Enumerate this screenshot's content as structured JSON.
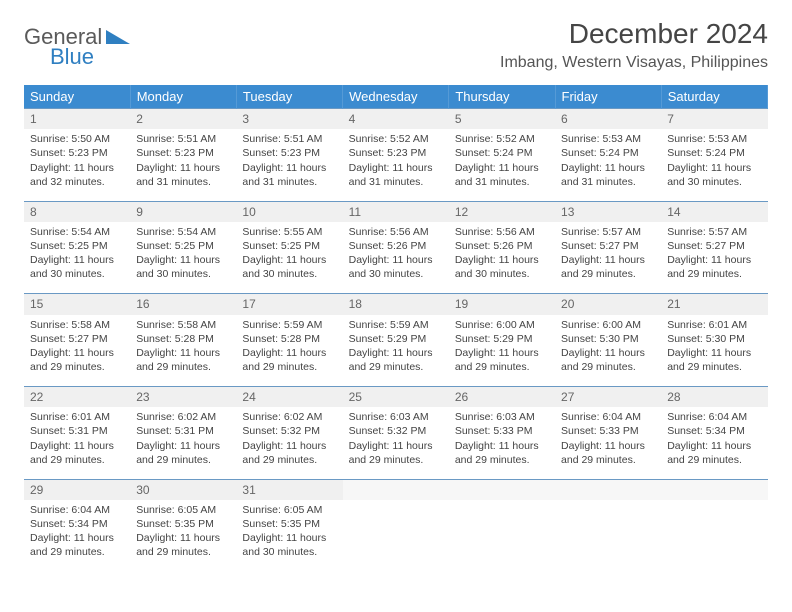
{
  "logo": {
    "line1": "General",
    "line2": "Blue"
  },
  "title": "December 2024",
  "location": "Imbang, Western Visayas, Philippines",
  "dayNames": [
    "Sunday",
    "Monday",
    "Tuesday",
    "Wednesday",
    "Thursday",
    "Friday",
    "Saturday"
  ],
  "colors": {
    "headerBg": "#3b8bd0",
    "headerText": "#ffffff",
    "dayNumBg": "#f0f0f0",
    "borderLine": "#6a99c4",
    "bodyText": "#444444"
  },
  "weeks": [
    [
      {
        "n": "1",
        "sr": "5:50 AM",
        "ss": "5:23 PM",
        "dl": "11 hours and 32 minutes."
      },
      {
        "n": "2",
        "sr": "5:51 AM",
        "ss": "5:23 PM",
        "dl": "11 hours and 31 minutes."
      },
      {
        "n": "3",
        "sr": "5:51 AM",
        "ss": "5:23 PM",
        "dl": "11 hours and 31 minutes."
      },
      {
        "n": "4",
        "sr": "5:52 AM",
        "ss": "5:23 PM",
        "dl": "11 hours and 31 minutes."
      },
      {
        "n": "5",
        "sr": "5:52 AM",
        "ss": "5:24 PM",
        "dl": "11 hours and 31 minutes."
      },
      {
        "n": "6",
        "sr": "5:53 AM",
        "ss": "5:24 PM",
        "dl": "11 hours and 31 minutes."
      },
      {
        "n": "7",
        "sr": "5:53 AM",
        "ss": "5:24 PM",
        "dl": "11 hours and 30 minutes."
      }
    ],
    [
      {
        "n": "8",
        "sr": "5:54 AM",
        "ss": "5:25 PM",
        "dl": "11 hours and 30 minutes."
      },
      {
        "n": "9",
        "sr": "5:54 AM",
        "ss": "5:25 PM",
        "dl": "11 hours and 30 minutes."
      },
      {
        "n": "10",
        "sr": "5:55 AM",
        "ss": "5:25 PM",
        "dl": "11 hours and 30 minutes."
      },
      {
        "n": "11",
        "sr": "5:56 AM",
        "ss": "5:26 PM",
        "dl": "11 hours and 30 minutes."
      },
      {
        "n": "12",
        "sr": "5:56 AM",
        "ss": "5:26 PM",
        "dl": "11 hours and 30 minutes."
      },
      {
        "n": "13",
        "sr": "5:57 AM",
        "ss": "5:27 PM",
        "dl": "11 hours and 29 minutes."
      },
      {
        "n": "14",
        "sr": "5:57 AM",
        "ss": "5:27 PM",
        "dl": "11 hours and 29 minutes."
      }
    ],
    [
      {
        "n": "15",
        "sr": "5:58 AM",
        "ss": "5:27 PM",
        "dl": "11 hours and 29 minutes."
      },
      {
        "n": "16",
        "sr": "5:58 AM",
        "ss": "5:28 PM",
        "dl": "11 hours and 29 minutes."
      },
      {
        "n": "17",
        "sr": "5:59 AM",
        "ss": "5:28 PM",
        "dl": "11 hours and 29 minutes."
      },
      {
        "n": "18",
        "sr": "5:59 AM",
        "ss": "5:29 PM",
        "dl": "11 hours and 29 minutes."
      },
      {
        "n": "19",
        "sr": "6:00 AM",
        "ss": "5:29 PM",
        "dl": "11 hours and 29 minutes."
      },
      {
        "n": "20",
        "sr": "6:00 AM",
        "ss": "5:30 PM",
        "dl": "11 hours and 29 minutes."
      },
      {
        "n": "21",
        "sr": "6:01 AM",
        "ss": "5:30 PM",
        "dl": "11 hours and 29 minutes."
      }
    ],
    [
      {
        "n": "22",
        "sr": "6:01 AM",
        "ss": "5:31 PM",
        "dl": "11 hours and 29 minutes."
      },
      {
        "n": "23",
        "sr": "6:02 AM",
        "ss": "5:31 PM",
        "dl": "11 hours and 29 minutes."
      },
      {
        "n": "24",
        "sr": "6:02 AM",
        "ss": "5:32 PM",
        "dl": "11 hours and 29 minutes."
      },
      {
        "n": "25",
        "sr": "6:03 AM",
        "ss": "5:32 PM",
        "dl": "11 hours and 29 minutes."
      },
      {
        "n": "26",
        "sr": "6:03 AM",
        "ss": "5:33 PM",
        "dl": "11 hours and 29 minutes."
      },
      {
        "n": "27",
        "sr": "6:04 AM",
        "ss": "5:33 PM",
        "dl": "11 hours and 29 minutes."
      },
      {
        "n": "28",
        "sr": "6:04 AM",
        "ss": "5:34 PM",
        "dl": "11 hours and 29 minutes."
      }
    ],
    [
      {
        "n": "29",
        "sr": "6:04 AM",
        "ss": "5:34 PM",
        "dl": "11 hours and 29 minutes."
      },
      {
        "n": "30",
        "sr": "6:05 AM",
        "ss": "5:35 PM",
        "dl": "11 hours and 29 minutes."
      },
      {
        "n": "31",
        "sr": "6:05 AM",
        "ss": "5:35 PM",
        "dl": "11 hours and 30 minutes."
      },
      null,
      null,
      null,
      null
    ]
  ],
  "labels": {
    "sunrise": "Sunrise: ",
    "sunset": "Sunset: ",
    "daylight": "Daylight: "
  }
}
